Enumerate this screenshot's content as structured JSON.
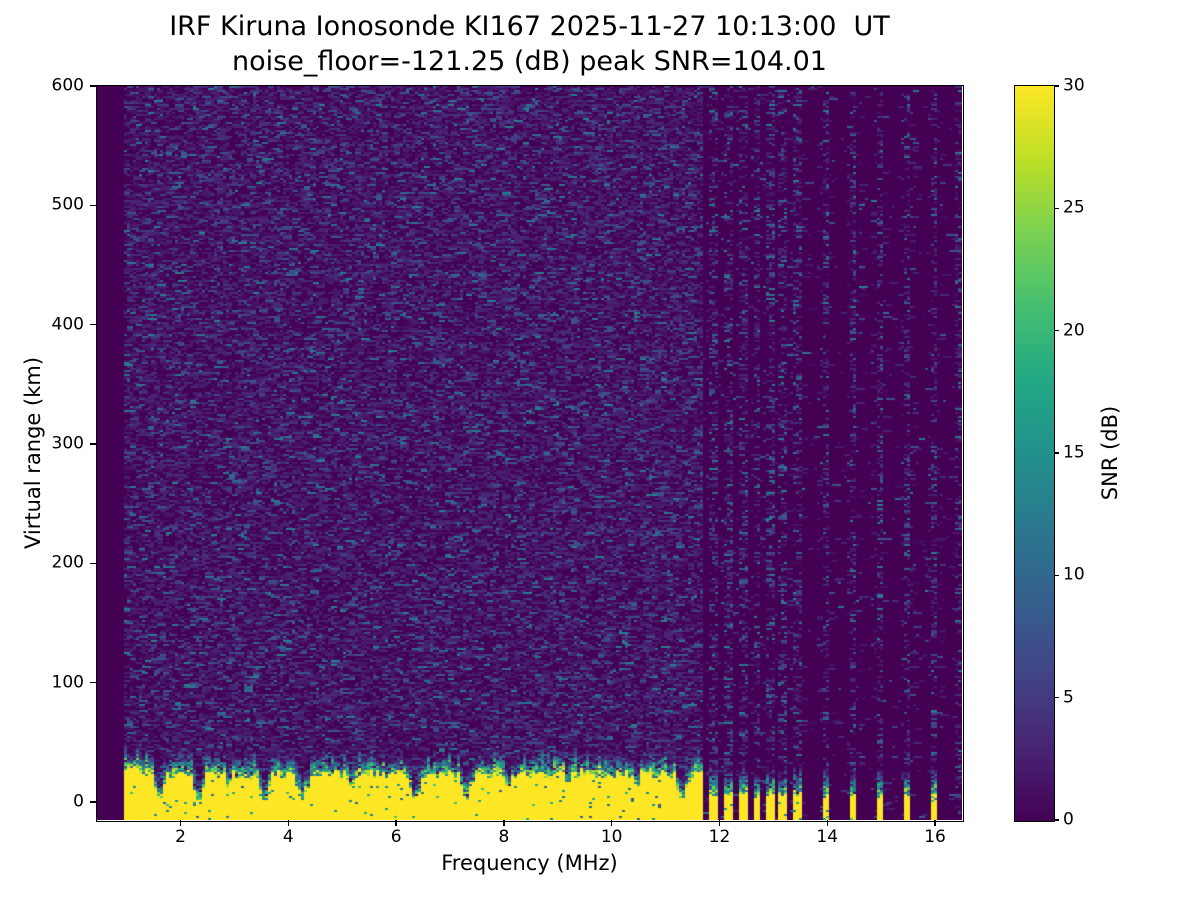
{
  "chart_data": {
    "type": "heatmap",
    "title": "IRF Kiruna Ionosonde KI167 2025-11-27 10:13:00  UT",
    "subtitle": "noise_floor=-121.25 (dB) peak SNR=104.01",
    "station": "IRF Kiruna Ionosonde KI167",
    "timestamp_ut": "2025-11-27 10:13:00",
    "noise_floor_db": -121.25,
    "peak_snr_db": 104.01,
    "xlabel": "Frequency (MHz)",
    "ylabel": "Virtual range (km)",
    "colorbar_label": "SNR (dB)",
    "xlim": [
      0.45,
      16.5
    ],
    "ylim": [
      -15,
      600
    ],
    "snr_scale_db": [
      0,
      30
    ],
    "x_ticks": [
      2,
      4,
      6,
      8,
      10,
      12,
      14,
      16
    ],
    "y_ticks": [
      0,
      100,
      200,
      300,
      400,
      500,
      600
    ],
    "colorbar_ticks": [
      0,
      5,
      10,
      15,
      20,
      25,
      30
    ],
    "colormap": "viridis",
    "colormap_stops": [
      {
        "t": 0.0,
        "color": "#440154"
      },
      {
        "t": 0.1,
        "color": "#482475"
      },
      {
        "t": 0.2,
        "color": "#414487"
      },
      {
        "t": 0.3,
        "color": "#355f8d"
      },
      {
        "t": 0.4,
        "color": "#2a788e"
      },
      {
        "t": 0.5,
        "color": "#21918c"
      },
      {
        "t": 0.6,
        "color": "#22a884"
      },
      {
        "t": 0.7,
        "color": "#44bf70"
      },
      {
        "t": 0.8,
        "color": "#7ad151"
      },
      {
        "t": 0.9,
        "color": "#bddf26"
      },
      {
        "t": 1.0,
        "color": "#fde725"
      }
    ],
    "features": {
      "sweep_start_mhz": 0.95,
      "continuous_sweep_end_mhz": 11.68,
      "ground_clutter": {
        "solid_snr_db": 30,
        "typical_solid_top_km": 22,
        "speckle_top_km": 40
      },
      "clutter_notches_mhz": [
        1.6,
        2.35,
        3.55,
        4.25,
        6.35,
        7.3,
        11.3
      ],
      "minor_dips_mhz": [
        2.9,
        5.15,
        8.05,
        9.15,
        10.45
      ],
      "gapped_sweep_stripes_mhz": [
        11.86,
        12.15,
        12.4,
        12.66,
        12.9,
        13.15,
        13.4
      ],
      "isolated_stripes_mhz": [
        13.93,
        14.46,
        14.92,
        15.46,
        15.96
      ],
      "noise_only_columns_mhz": [
        16.38
      ],
      "elevated_noise_columns_mhz": [
        3.35,
        5.3,
        8.0,
        9.95,
        10.65
      ],
      "background_noise_db_range": [
        0,
        13
      ],
      "note": "SNR clipped to 0-30 dB color scale; uniform background below 0.95 MHz (no sweep data)"
    }
  }
}
